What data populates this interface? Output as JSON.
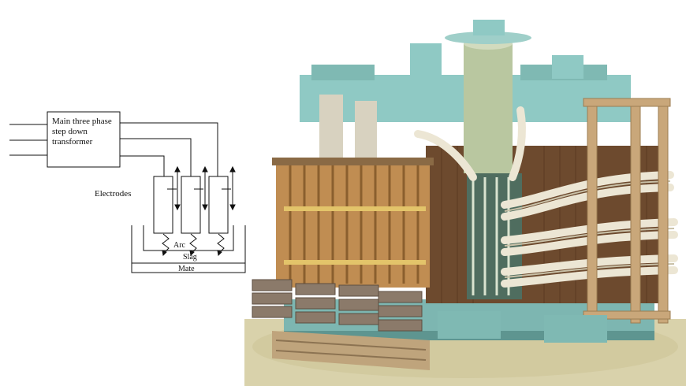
{
  "diagram": {
    "transformer_label": [
      "Main three phase",
      "step down",
      "transformer"
    ],
    "electrodes_label": "Electrodes",
    "arc_label": "Arc",
    "slag_label": "Slag",
    "mate_label": "Mate"
  },
  "photo": {
    "subject": "furnace transformer with electrode leads"
  },
  "colors": {
    "line": "#111111",
    "teal_frame": "#8fc9c4",
    "copper_core": "#b9874e",
    "winding_brown": "#6d4a2e",
    "cable_cream": "#ece6d4",
    "bushing_green": "#b9c7a0",
    "wood": "#c9a77a",
    "floor": "#d8cfa4"
  }
}
